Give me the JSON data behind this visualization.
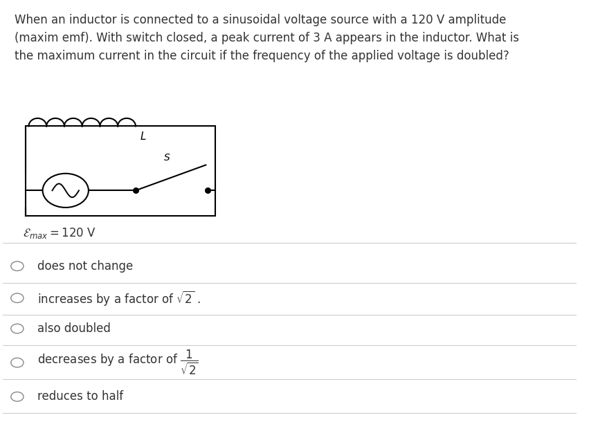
{
  "title_text": "When an inductor is connected to a sinusoidal voltage source with a 120 V amplitude\n(maxim emf). With switch closed, a peak current of 3 A appears in the inductor. What is\nthe maximum current in the circuit if the frequency of the applied voltage is doubled?",
  "options": [
    "does not change",
    "increases by a factor of $\\sqrt{2}$ .",
    "also doubled",
    "decreases by a factor of $\\dfrac{1}{\\sqrt{2}}$",
    "reduces to half"
  ],
  "emf_label": "$\\mathcal{E}_{max}=120$ V",
  "circuit_label_L": "L",
  "circuit_label_S": "S",
  "bg_color": "#ffffff",
  "text_color": "#333333",
  "line_color": "#000000",
  "separator_color": "#cccccc",
  "radio_color": "#888888",
  "title_fontsize": 12,
  "option_fontsize": 12,
  "fig_width": 8.9,
  "fig_height": 6.23
}
